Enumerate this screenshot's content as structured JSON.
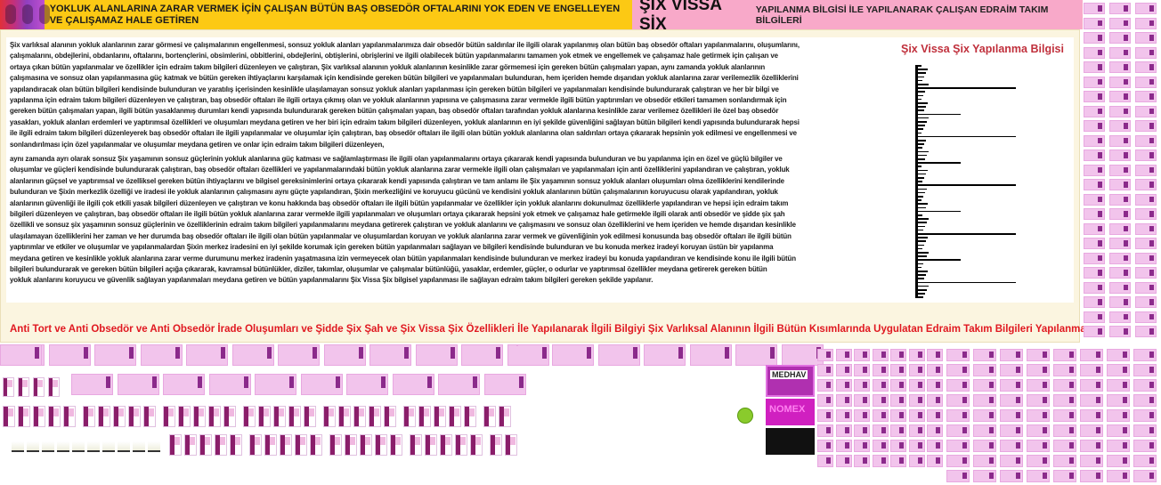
{
  "header": {
    "left_title": "YOKLUK ALANLARINA ZARAR VERMEK İÇİN ÇALIŞAN BÜTÜN BAŞ OBSEDÖR OFTALARINI YOK EDEN VE ENGELLEYEN VE ÇALIŞAMAZ HALE GETİREN",
    "right_title_big": "ŞİX VİSSA ŞİX",
    "right_title_small": "YAPILANMA BİLGİSİ İLE YAPILANARAK ÇALIŞAN EDRAİM TAKIM BİLGİLERİ",
    "colors": {
      "left_bg": "#fcc914",
      "right_bg": "#f8a9c9"
    }
  },
  "body": {
    "lines": [
      "Şix varlıksal alanının yokluk alanlarının zarar görmesi ve çalışmalarının engellenmesi, sonsuz yokluk alanları yapılanmalarımıza dair obsedör bütün saldırılar ile ilgili olarak yapılanmış olan bütün baş obsedör oftaları yapılanmalarını, oluşumlarını,",
      "çalışmalarını, obdejlerini, obdanlarını, oftalarını, bortençlerini, obsimlerini, obbitlerini, obdejlerini, obtişlerini, obrişlerini ve ilgili olabilecek bütün yapılanmalarını tamamen yok etmek ve engellemek ve çalışamaz hale getirmek için çalışan ve",
      "ortaya çıkan bütün yapılanmalar ve özellikler için edraim takım bilgileri düzenleyen ve çalıştıran, Şix varlıksal alanının yokluk alanlarının kesinlikle zarar görmemesi için gereken bütün çalışmaları yapan, aynı zamanda yokluk alanlarının",
      "çalışmasına ve sonsuz olan yapılanmasına güç katmak ve bütün gereken ihtiyaçlarını karşılamak için kendisinde gereken bütün bilgileri ve yapılanmaları bulunduran, hem içeriden hemde dışarıdan yokluk alanlarına zarar verilemezlik özelliklerini",
      "yapılandıracak olan bütün bilgileri kendisinde bulunduran ve yaratılış içerisinden kesinlikle ulaşılamayan sonsuz yokluk alanları yapılanması için gereken bütün bilgileri ve yapılanmaları kendisinde bulundurarak çalıştıran ve her bir bilgi ve",
      "yapılanma için edraim takım bilgileri düzenleyen ve çalıştıran, baş obsedör oftaları ile ilgili ortaya çıkmış olan ve yokluk alanlarının yapısına ve çalışmasına zarar vermekle ilgili bütün yaptırımları ve obsedör etkileri tamamen sonlandırmak için",
      "gereken bütün çalışmaları yapan, ilgili bütün yasaklanmış durumları kendi yapısında bulundurarak gereken bütün çalışmaları yapan, baş obsedör oftaları tarafından yokluk alanlarına kesinlikle zarar verilemez özellikleri ile özel baş obsedör",
      "yasakları, yokluk alanları erdemleri ve yaptırımsal özellikleri ve oluşumları meydana getiren ve her biri için edraim takım bilgileri düzenleyen, yokluk alanlarının en iyi şekilde güvenliğini sağlayan bütün bilgileri kendi yapısında bulundurarak hepsi",
      "ile ilgili edraim takım bilgileri düzenleyerek baş obsedör oftaları ile ilgili yapılanmalar ve oluşumlar için çalıştıran, baş obsedör oftaları ile ilgili olan bütün yokluk alanlarına olan saldırıları ortaya çıkararak hepsinin yok edilmesi ve engellenmesi ve",
      "sonlandırılması için özel yapılanmalar ve oluşumlar meydana getiren ve onlar için edraim takım bilgileri düzenleyen,",
      " aynı zamanda ayrı olarak sonsuz Şix yaşamının sonsuz güçlerinin yokluk alanlarına güç katması ve sağlamlaştırması ile ilgili olan yapılanmalarını ortaya çıkararak kendi yapısında bulunduran ve bu yapılanma için en özel ve güçlü bilgiler ve",
      "oluşumlar ve güçleri kendisinde bulundurarak çalıştıran, baş obsedör oftaları özellikleri ve yapılanmalarındaki bütün yokluk alanlarına zarar vermekle ilgili olan çalışmaları ve yapılanmaları için anti özelliklerini yapılandıran ve çalıştıran, yokluk",
      "alanlarının güçsel ve yaptırımsal ve özelliksel gereken bütün ihtiyaçlarını ve bilgisel gereksinimlerini ortaya çıkararak kendi yapısında çalıştıran ve tam anlamı ile Şix yaşamının sonsuz yokluk alanları oluşumları olma özelliklerini kendilerinde",
      "bulunduran ve Şixin merkezlik özelliği ve iradesi ile yokluk alanlarının çalışmasını aynı güçte yapılandıran, Şixin merkezliğini ve koruyucu gücünü ve kendisini yokluk alanlarının bütün çalışmalarının koruyucusu olarak yapılandıran, yokluk",
      "alanlarının  güvenliği ile ilgili çok etkili yasak bilgileri düzenleyen ve çalıştıran ve konu hakkında baş obsedör oftaları ile ilgili bütün yapılanmalar ve özellikler için yokluk alanlarını dokunulmaz özelliklerle yapılandıran ve hepsi için edraim takım",
      "bilgileri düzenleyen ve çalıştıran, baş obsedör oftaları ile ilgili bütün yokluk alanlarına zarar vermekle ilgili yapılanmaları ve oluşumları ortaya  çıkararak hepsini yok etmek ve çalışamaz hale getirmekle ilgili olarak anti obsedör ve şidde şix şah",
      "özellikli ve sonsuz şix yaşamının sonsuz güçlerinin ve özelliklerinin edraim takım bilgileri yapılanmalarını meydana getirerek çalıştıran ve yokluk alanlarını ve çalışmasını ve sonsuz olan özelliklerini ve hem içeriden ve hemde dışarıdan kesinlikle",
      "ulaşılamayan özelliklerini her zaman ve her durumda baş obsedör oftaları ile ilgili olan bütün yapılanmalar ve oluşumlardan koruyan ve yokluk alanlarına zarar vermek ve güvenliğinin yok edilmesi konusunda baş obsedör oftaları ile ilgili bütün",
      "yaptırımlar ve etkiler ve oluşumlar ve yapılanmalardan Şixin merkez iradesini en iyi şekilde korumak için gereken bütün yapılanmaları sağlayan ve bilgileri kendisinde bulunduran ve bu konuda merkez iradeyi koruyan üstün bir yapılanma",
      "meydana getiren ve kesinlikle yokluk alanlarına zarar verme durumunu merkez iradenin yaşatmasına izin vermeyecek olan bütün yapılanmaları kendisinde bulunduran ve merkez iradeyi bu konuda yapılandıran ve kendisinde konu ile ilgili bütün",
      "bilgileri bulundurarak ve gereken bütün bilgileri açığa çıkararak, kavramsal bütünlükler, diziler, takımlar, oluşumlar ve çalışmalar bütünlüğü, yasaklar, erdemler, güçler, o odurlar ve yaptırımsal özellikler meydana getirerek gereken bütün",
      "yokluk alanlarını koruyucu ve güvenlik sağlayan yapılanmaları meydana getiren ve bütün yapılanmalarını Şix Vissa Şix bilgisel yapılanması ile sağlayan edraim takım bilgileri gereken şekilde yapılanır."
    ]
  },
  "side": {
    "title": "Şix Vissa Şix Yapılanma Bilgisi",
    "title_color": "#c0303c"
  },
  "footer": {
    "title": "Anti Tort ve Anti Obsedör ve Anti Obsedör İrade Oluşumları ve Şidde Şix Şah ve Şix Vissa Şix Özellikleri İle Yapılanarak İlgili Bilgiyi Şix Varlıksal Alanının İlgili Bütün Kısımlarında Uygulatan Edraim Takım Bilgileri Yapılanması",
    "color": "#e01820"
  },
  "ads": {
    "logo1": "MEDHAV",
    "logo2": "NOMEX"
  }
}
